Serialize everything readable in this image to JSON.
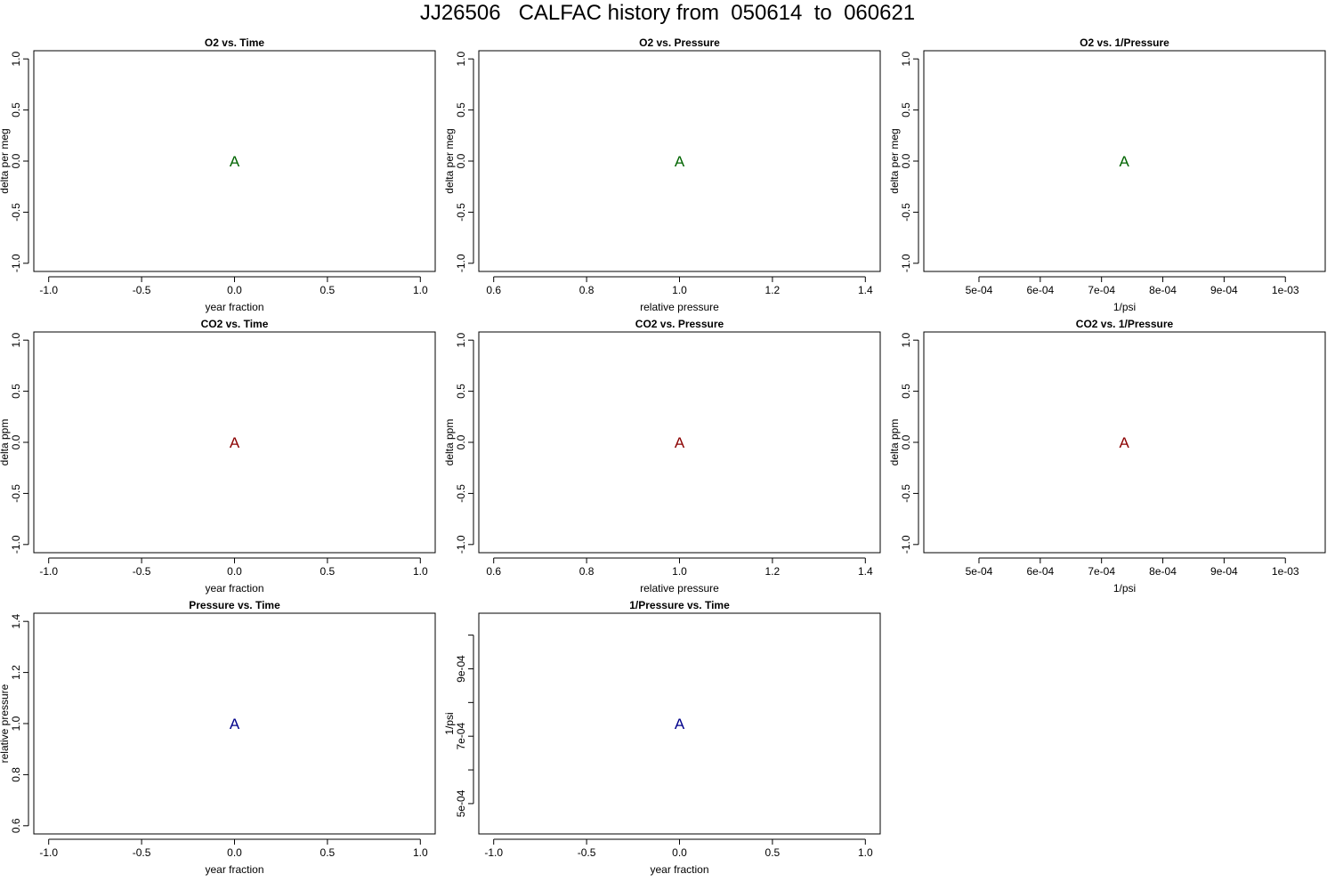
{
  "page_title": "JJ26506   CALFAC history from  050614  to  060621",
  "chart_data": [
    {
      "type": "scatter",
      "title": "O2 vs. Time",
      "xlabel": "year fraction",
      "ylabel": "delta per meg",
      "xlim": [
        -1.08,
        1.08
      ],
      "ylim": [
        -1.08,
        1.08
      ],
      "xticks": [
        -1.0,
        -0.5,
        0.0,
        0.5,
        1.0
      ],
      "xtick_labels": [
        "-1.0",
        "-0.5",
        "0.0",
        "0.5",
        "1.0"
      ],
      "yticks": [
        -1.0,
        -0.5,
        0.0,
        0.5,
        1.0
      ],
      "ytick_labels": [
        "-1.0",
        "-0.5",
        "0.0",
        "0.5",
        "1.0"
      ],
      "points": [
        {
          "x": 0.0,
          "y": 0.0,
          "label": "A"
        }
      ],
      "color": "#006400"
    },
    {
      "type": "scatter",
      "title": "O2 vs. Pressure",
      "xlabel": "relative pressure",
      "ylabel": "delta per meg",
      "xlim": [
        0.568,
        1.432
      ],
      "ylim": [
        -1.08,
        1.08
      ],
      "xticks": [
        0.6,
        0.8,
        1.0,
        1.2,
        1.4
      ],
      "xtick_labels": [
        "0.6",
        "0.8",
        "1.0",
        "1.2",
        "1.4"
      ],
      "yticks": [
        -1.0,
        -0.5,
        0.0,
        0.5,
        1.0
      ],
      "ytick_labels": [
        "-1.0",
        "-0.5",
        "0.0",
        "0.5",
        "1.0"
      ],
      "points": [
        {
          "x": 1.0,
          "y": 0.0,
          "label": "A"
        }
      ],
      "color": "#006400"
    },
    {
      "type": "scatter",
      "title": "O2 vs. 1/Pressure",
      "xlabel": "1/psi",
      "ylabel": "delta per meg",
      "xlim": [
        0.00041,
        0.001065
      ],
      "ylim": [
        -1.08,
        1.08
      ],
      "xticks": [
        0.0005,
        0.0006,
        0.0007,
        0.0008,
        0.0009,
        0.001
      ],
      "xtick_labels": [
        "5e-04",
        "6e-04",
        "7e-04",
        "8e-04",
        "9e-04",
        "1e-03"
      ],
      "yticks": [
        -1.0,
        -0.5,
        0.0,
        0.5,
        1.0
      ],
      "ytick_labels": [
        "-1.0",
        "-0.5",
        "0.0",
        "0.5",
        "1.0"
      ],
      "points": [
        {
          "x": 0.000737,
          "y": 0.0,
          "label": "A"
        }
      ],
      "color": "#006400"
    },
    {
      "type": "scatter",
      "title": "CO2 vs. Time",
      "xlabel": "year fraction",
      "ylabel": "delta ppm",
      "xlim": [
        -1.08,
        1.08
      ],
      "ylim": [
        -1.08,
        1.08
      ],
      "xticks": [
        -1.0,
        -0.5,
        0.0,
        0.5,
        1.0
      ],
      "xtick_labels": [
        "-1.0",
        "-0.5",
        "0.0",
        "0.5",
        "1.0"
      ],
      "yticks": [
        -1.0,
        -0.5,
        0.0,
        0.5,
        1.0
      ],
      "ytick_labels": [
        "-1.0",
        "-0.5",
        "0.0",
        "0.5",
        "1.0"
      ],
      "points": [
        {
          "x": 0.0,
          "y": 0.0,
          "label": "A"
        }
      ],
      "color": "#8b0000"
    },
    {
      "type": "scatter",
      "title": "CO2 vs. Pressure",
      "xlabel": "relative pressure",
      "ylabel": "delta ppm",
      "xlim": [
        0.568,
        1.432
      ],
      "ylim": [
        -1.08,
        1.08
      ],
      "xticks": [
        0.6,
        0.8,
        1.0,
        1.2,
        1.4
      ],
      "xtick_labels": [
        "0.6",
        "0.8",
        "1.0",
        "1.2",
        "1.4"
      ],
      "yticks": [
        -1.0,
        -0.5,
        0.0,
        0.5,
        1.0
      ],
      "ytick_labels": [
        "-1.0",
        "-0.5",
        "0.0",
        "0.5",
        "1.0"
      ],
      "points": [
        {
          "x": 1.0,
          "y": 0.0,
          "label": "A"
        }
      ],
      "color": "#8b0000"
    },
    {
      "type": "scatter",
      "title": "CO2 vs. 1/Pressure",
      "xlabel": "1/psi",
      "ylabel": "delta ppm",
      "xlim": [
        0.00041,
        0.001065
      ],
      "ylim": [
        -1.08,
        1.08
      ],
      "xticks": [
        0.0005,
        0.0006,
        0.0007,
        0.0008,
        0.0009,
        0.001
      ],
      "xtick_labels": [
        "5e-04",
        "6e-04",
        "7e-04",
        "8e-04",
        "9e-04",
        "1e-03"
      ],
      "yticks": [
        -1.0,
        -0.5,
        0.0,
        0.5,
        1.0
      ],
      "ytick_labels": [
        "-1.0",
        "-0.5",
        "0.0",
        "0.5",
        "1.0"
      ],
      "points": [
        {
          "x": 0.000737,
          "y": 0.0,
          "label": "A"
        }
      ],
      "color": "#8b0000"
    },
    {
      "type": "scatter",
      "title": "Pressure vs. Time",
      "xlabel": "year fraction",
      "ylabel": "relative pressure",
      "xlim": [
        -1.08,
        1.08
      ],
      "ylim": [
        0.568,
        1.432
      ],
      "xticks": [
        -1.0,
        -0.5,
        0.0,
        0.5,
        1.0
      ],
      "xtick_labels": [
        "-1.0",
        "-0.5",
        "0.0",
        "0.5",
        "1.0"
      ],
      "yticks": [
        0.6,
        0.8,
        1.0,
        1.2,
        1.4
      ],
      "ytick_labels": [
        "0.6",
        "0.8",
        "1.0",
        "1.2",
        "1.4"
      ],
      "points": [
        {
          "x": 0.0,
          "y": 1.0,
          "label": "A"
        }
      ],
      "color": "#00008b"
    },
    {
      "type": "scatter",
      "title": "1/Pressure vs. Time",
      "xlabel": "year fraction",
      "ylabel": "1/psi",
      "xlim": [
        -1.08,
        1.08
      ],
      "ylim": [
        0.00041,
        0.001065
      ],
      "xticks": [
        -1.0,
        -0.5,
        0.0,
        0.5,
        1.0
      ],
      "xtick_labels": [
        "-1.0",
        "-0.5",
        "0.0",
        "0.5",
        "1.0"
      ],
      "yticks": [
        0.0005,
        0.0006,
        0.0007,
        0.0008,
        0.0009,
        0.001
      ],
      "ytick_labels": [
        "5e-04",
        "",
        "7e-04",
        "",
        "9e-04",
        ""
      ],
      "points": [
        {
          "x": 0.0,
          "y": 0.000737,
          "label": "A"
        }
      ],
      "color": "#00008b"
    }
  ]
}
